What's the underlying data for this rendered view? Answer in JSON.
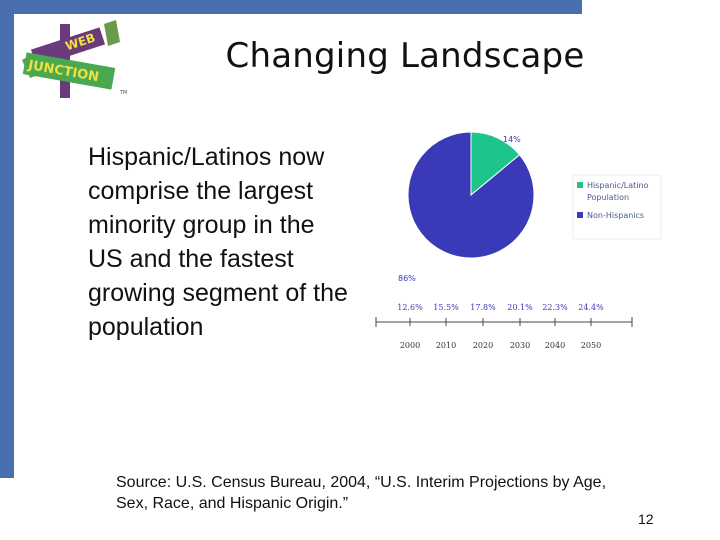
{
  "slide": {
    "title": "Changing Landscape",
    "body": "Hispanic/Latinos now comprise the largest minority group in the US and the fastest growing segment of the population",
    "source": "Source: U.S. Census Bureau, 2004, “U.S. Interim Projections by Age, Sex, Race, and Hispanic Origin.”",
    "page_number": "12"
  },
  "logo": {
    "line1": "WEB",
    "line2": "JUNCTION",
    "mark": "TM"
  },
  "colors": {
    "accent_bar": "#4a6fb0",
    "hispanic": "#1ec58a",
    "non_hispanic": "#3a3ab8",
    "pie_label": "#3a3ab8",
    "timeline_label": "#3a3ab8"
  },
  "chart_data": [
    {
      "type": "pie",
      "slices": [
        {
          "label": "Hispanic/Latino Population",
          "value": 14,
          "display": "14%",
          "color": "#1ec58a"
        },
        {
          "label": "Non-Hispanics",
          "value": 86,
          "display": "86%",
          "color": "#3a3ab8"
        }
      ],
      "legend_position": "right"
    },
    {
      "type": "table",
      "years": [
        "2000",
        "2010",
        "2020",
        "2030",
        "2040",
        "2050"
      ],
      "percents": [
        "12.6%",
        "15.5%",
        "17.8%",
        "20.1%",
        "22.3%",
        "24.4%"
      ]
    }
  ]
}
